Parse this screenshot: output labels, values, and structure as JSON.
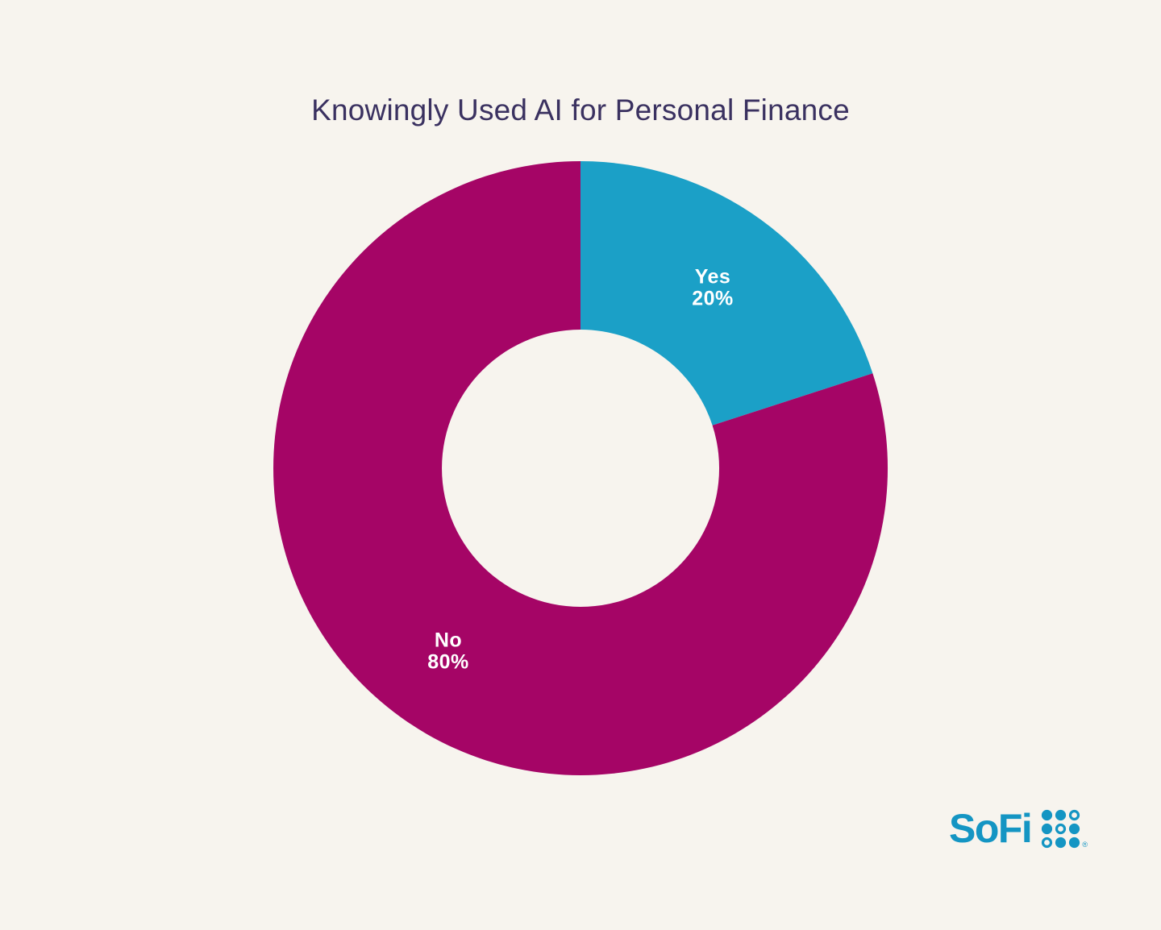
{
  "page": {
    "background": "#F7F4EE"
  },
  "chart_data": {
    "type": "pie",
    "variant": "donut",
    "title": "Knowingly Used AI for Personal Finance",
    "categories": [
      "Yes",
      "No"
    ],
    "values": [
      20,
      80
    ],
    "unit": "%",
    "colors": [
      "#1BA0C7",
      "#A50566"
    ],
    "label_color": "#FFFFFF",
    "title_color": "#3A3160",
    "start_angle_deg_from_north": 0,
    "direction": "clockwise",
    "legend": "none",
    "outer_radius_px": 381,
    "inner_radius_px": 172,
    "label_radius_px": 279
  },
  "branding": {
    "wordmark": "SoFi",
    "color": "#1495C3",
    "trademark": "®",
    "dot_pattern": [
      [
        1,
        1,
        0
      ],
      [
        1,
        0,
        1
      ],
      [
        0,
        1,
        1
      ]
    ]
  }
}
